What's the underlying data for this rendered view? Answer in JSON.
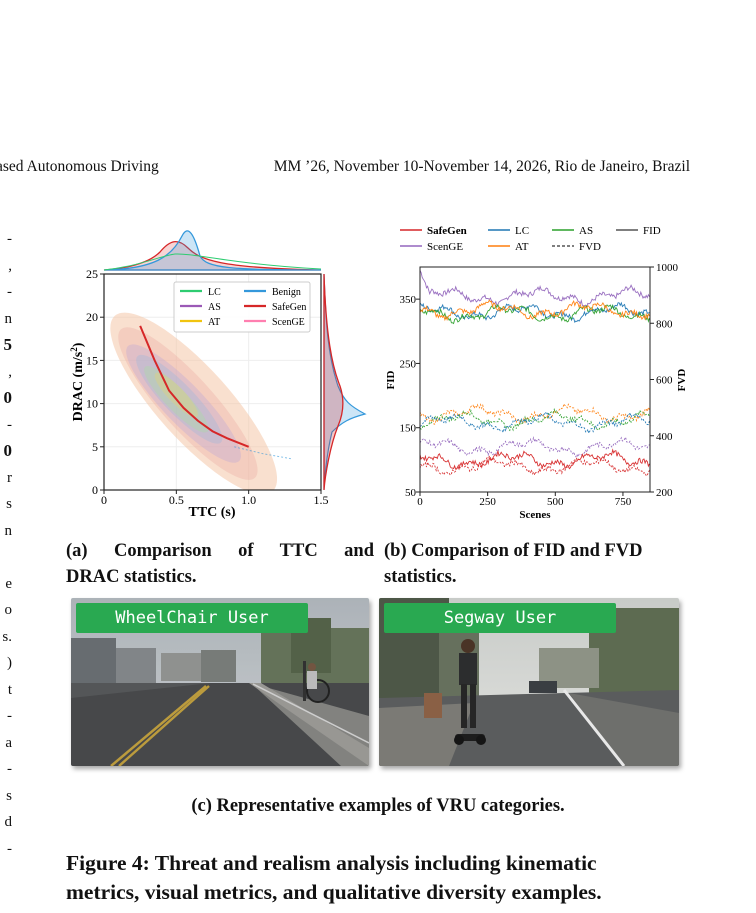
{
  "header": {
    "left": "ased Autonomous Driving",
    "right": "MM ’26, November 10-November 14, 2026, Rio de Janeiro, Brazil"
  },
  "left_column_fragments": [
    "-",
    ",",
    "-",
    "n",
    "5",
    ",",
    "0",
    "-",
    "0",
    "r",
    "s",
    "n",
    "",
    "e",
    "o",
    "s.",
    ")",
    "t",
    "-",
    "a",
    "-",
    "s",
    "d",
    "-"
  ],
  "subfigure_a": {
    "caption_line1": "(a) Comparison of TTC and",
    "caption_line2": "DRAC statistics.",
    "chart_data": {
      "type": "scatter",
      "xlabel": "TTC (s)",
      "ylabel": "DRAC (m/s²)",
      "xlim": [
        0,
        1.5
      ],
      "ylim": [
        0,
        25
      ],
      "xticks": [
        "0",
        "0.5",
        "1.0",
        "1.5"
      ],
      "yticks": [
        "0",
        "5",
        "10",
        "15",
        "20",
        "25"
      ],
      "legend_position": "top-right",
      "grid": true,
      "series": [
        {
          "name": "LC",
          "color": "#2ecc71"
        },
        {
          "name": "Benign",
          "color": "#3498db"
        },
        {
          "name": "AS",
          "color": "#9b59b6"
        },
        {
          "name": "SafeGen",
          "color": "#d62728"
        },
        {
          "name": "AT",
          "color": "#f1c40f"
        },
        {
          "name": "ScenGE",
          "color": "#ff7fb0"
        }
      ],
      "safegen_curve": {
        "x": [
          0.25,
          0.35,
          0.45,
          0.55,
          0.65,
          0.75,
          0.85,
          1.0
        ],
        "y": [
          19,
          15,
          11.5,
          9.5,
          8,
          6.8,
          6,
          5
        ]
      },
      "benign_curve": {
        "x": [
          0.9,
          1.1,
          1.3
        ],
        "y": [
          5,
          4.2,
          3.6
        ]
      }
    }
  },
  "subfigure_b": {
    "caption_line1": "(b) Comparison of FID and FVD",
    "caption_line2": "statistics.",
    "chart_data": {
      "type": "line",
      "xlabel": "Scenes",
      "ylabel": "FID",
      "y2label": "FVD",
      "xlim": [
        0,
        850
      ],
      "ylim": [
        50,
        400
      ],
      "y2lim": [
        200,
        1000
      ],
      "xticks": [
        "0",
        "250",
        "500",
        "750"
      ],
      "yticks": [
        "50",
        "150",
        "250",
        "350"
      ],
      "y2ticks": [
        "200",
        "400",
        "600",
        "800",
        "1000"
      ],
      "legend_position": "top",
      "series": [
        {
          "name": "SafeGen",
          "color": "#d62728"
        },
        {
          "name": "LC",
          "color": "#1f77b4"
        },
        {
          "name": "AS",
          "color": "#2ca02c"
        },
        {
          "name": "FID",
          "color": "#555555"
        },
        {
          "name": "ScenGE",
          "color": "#9467bd"
        },
        {
          "name": "AT",
          "color": "#ff7f0e"
        },
        {
          "name": "FVD",
          "color": "#555555"
        }
      ],
      "bands": [
        {
          "series": "ScenGE",
          "metric": "FID",
          "level": 355,
          "start": 395
        },
        {
          "series": "LC",
          "metric": "FID",
          "level": 330
        },
        {
          "series": "AS",
          "metric": "FID",
          "level": 328
        },
        {
          "series": "AT",
          "metric": "FID",
          "level": 333
        },
        {
          "series": "AT",
          "metric": "FVD",
          "level": 172
        },
        {
          "series": "AS",
          "metric": "FVD",
          "level": 162
        },
        {
          "series": "LC",
          "metric": "FVD",
          "level": 158
        },
        {
          "series": "ScenGE",
          "metric": "FVD",
          "level": 120
        },
        {
          "series": "SafeGen",
          "metric": "FID",
          "level": 100
        },
        {
          "series": "SafeGen",
          "metric": "FVD",
          "level": 90
        }
      ]
    }
  },
  "subfigure_c": {
    "caption": "(c) Representative examples of VRU categories.",
    "examples": [
      {
        "label": "WheelChair User"
      },
      {
        "label": "Segway User"
      }
    ]
  },
  "figure_caption_line1": "Figure 4: Threat and realism analysis including kinematic",
  "figure_caption_line2": "metrics, visual metrics, and qualitative diversity examples."
}
